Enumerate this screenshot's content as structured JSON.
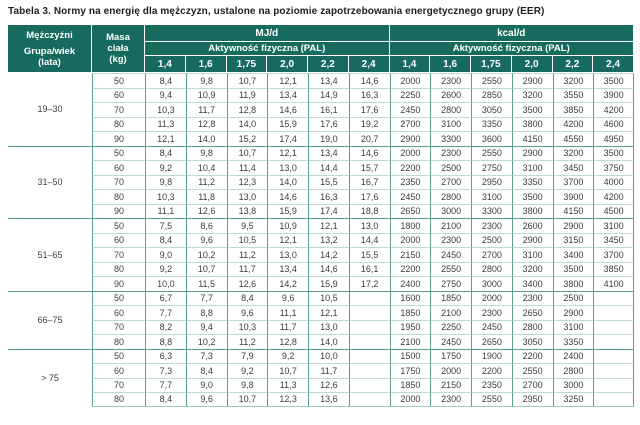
{
  "title": "Tabela 3. Normy na energię dla mężczyzn, ustalone na poziomie zapotrzebowania energetycznego grupy (EER)",
  "colors": {
    "header_teal": "#176a5e",
    "vertical_border": "#5e9e93",
    "row_line": "#bfdad4",
    "text": "#3c3c3b"
  },
  "header": {
    "group_col_line1": "Mężczyźni",
    "group_col_line2": "Grupa/wiek",
    "group_col_line3": "(lata)",
    "mass_col_line1": "Masa",
    "mass_col_line2": "ciała",
    "mass_col_line3": "(kg)",
    "mj_label": "MJ/d",
    "kcal_label": "kcal/d",
    "pal_label_mj": "Aktywność fizyczna (PAL)",
    "pal_label_kcal": "Aktywność fizyczna (PAL)",
    "pal_values": [
      "1,4",
      "1,6",
      "1,75",
      "2,0",
      "2,2",
      "2,4"
    ]
  },
  "groups": [
    {
      "age": "19–30",
      "rows": [
        {
          "mass": "50",
          "mj": [
            "8,4",
            "9,8",
            "10,7",
            "12,1",
            "13,4",
            "14,6"
          ],
          "kcal": [
            "2000",
            "2300",
            "2550",
            "2900",
            "3200",
            "3500"
          ]
        },
        {
          "mass": "60",
          "mj": [
            "9,4",
            "10,9",
            "11,9",
            "13,4",
            "14,9",
            "16,3"
          ],
          "kcal": [
            "2250",
            "2600",
            "2850",
            "3200",
            "3550",
            "3900"
          ]
        },
        {
          "mass": "70",
          "mj": [
            "10,3",
            "11,7",
            "12,8",
            "14,6",
            "16,1",
            "17,6"
          ],
          "kcal": [
            "2450",
            "2800",
            "3050",
            "3500",
            "3850",
            "4200"
          ]
        },
        {
          "mass": "80",
          "mj": [
            "11,3",
            "12,8",
            "14,0",
            "15,9",
            "17,6",
            "19,2"
          ],
          "kcal": [
            "2700",
            "3100",
            "3350",
            "3800",
            "4200",
            "4600"
          ]
        },
        {
          "mass": "90",
          "mj": [
            "12,1",
            "14,0",
            "15,2",
            "17,4",
            "19,0",
            "20,7"
          ],
          "kcal": [
            "2900",
            "3300",
            "3600",
            "4150",
            "4550",
            "4950"
          ]
        }
      ]
    },
    {
      "age": "31–50",
      "rows": [
        {
          "mass": "50",
          "mj": [
            "8,4",
            "9,8",
            "10,7",
            "12,1",
            "13,4",
            "14,6"
          ],
          "kcal": [
            "2000",
            "2300",
            "2550",
            "2900",
            "3200",
            "3500"
          ]
        },
        {
          "mass": "60",
          "mj": [
            "9,2",
            "10,4",
            "11,4",
            "13,0",
            "14,4",
            "15,7"
          ],
          "kcal": [
            "2200",
            "2500",
            "2750",
            "3100",
            "3450",
            "3750"
          ]
        },
        {
          "mass": "70",
          "mj": [
            "9,8",
            "11,2",
            "12,3",
            "14,0",
            "15,5",
            "16,7"
          ],
          "kcal": [
            "2350",
            "2700",
            "2950",
            "3350",
            "3700",
            "4000"
          ]
        },
        {
          "mass": "80",
          "mj": [
            "10,3",
            "11,8",
            "13,0",
            "14,6",
            "16,3",
            "17,6"
          ],
          "kcal": [
            "2450",
            "2800",
            "3100",
            "3500",
            "3900",
            "4200"
          ]
        },
        {
          "mass": "90",
          "mj": [
            "11,1",
            "12,6",
            "13,8",
            "15,9",
            "17,4",
            "18,8"
          ],
          "kcal": [
            "2650",
            "3000",
            "3300",
            "3800",
            "4150",
            "4500"
          ]
        }
      ]
    },
    {
      "age": "51–65",
      "rows": [
        {
          "mass": "50",
          "mj": [
            "7,5",
            "8,6",
            "9,5",
            "10,9",
            "12,1",
            "13,0"
          ],
          "kcal": [
            "1800",
            "2100",
            "2300",
            "2600",
            "2900",
            "3100"
          ]
        },
        {
          "mass": "60",
          "mj": [
            "8,4",
            "9,6",
            "10,5",
            "12,1",
            "13,2",
            "14,4"
          ],
          "kcal": [
            "2000",
            "2300",
            "2500",
            "2900",
            "3150",
            "3450"
          ]
        },
        {
          "mass": "70",
          "mj": [
            "9,0",
            "10,2",
            "11,2",
            "13,0",
            "14,2",
            "15,5"
          ],
          "kcal": [
            "2150",
            "2450",
            "2700",
            "3100",
            "3400",
            "3700"
          ]
        },
        {
          "mass": "80",
          "mj": [
            "9,2",
            "10,7",
            "11,7",
            "13,4",
            "14,6",
            "16,1"
          ],
          "kcal": [
            "2200",
            "2550",
            "2800",
            "3200",
            "3500",
            "3850"
          ]
        },
        {
          "mass": "90",
          "mj": [
            "10,0",
            "11,5",
            "12,6",
            "14,2",
            "15,9",
            "17,2"
          ],
          "kcal": [
            "2400",
            "2750",
            "3000",
            "3400",
            "3800",
            "4100"
          ]
        }
      ]
    },
    {
      "age": "66–75",
      "rows": [
        {
          "mass": "50",
          "mj": [
            "6,7",
            "7,7",
            "8,4",
            "9,6",
            "10,5",
            ""
          ],
          "kcal": [
            "1600",
            "1850",
            "2000",
            "2300",
            "2500",
            ""
          ]
        },
        {
          "mass": "60",
          "mj": [
            "7,7",
            "8,8",
            "9,6",
            "11,1",
            "12,1",
            ""
          ],
          "kcal": [
            "1850",
            "2100",
            "2300",
            "2650",
            "2900",
            ""
          ]
        },
        {
          "mass": "70",
          "mj": [
            "8,2",
            "9,4",
            "10,3",
            "11,7",
            "13,0",
            ""
          ],
          "kcal": [
            "1950",
            "2250",
            "2450",
            "2800",
            "3100",
            ""
          ]
        },
        {
          "mass": "80",
          "mj": [
            "8,8",
            "10,2",
            "11,2",
            "12,8",
            "14,0",
            ""
          ],
          "kcal": [
            "2100",
            "2450",
            "2650",
            "3050",
            "3350",
            ""
          ]
        }
      ]
    },
    {
      "age": "> 75",
      "rows": [
        {
          "mass": "50",
          "mj": [
            "6,3",
            "7,3",
            "7,9",
            "9,2",
            "10,0",
            ""
          ],
          "kcal": [
            "1500",
            "1750",
            "1900",
            "2200",
            "2400",
            ""
          ]
        },
        {
          "mass": "60",
          "mj": [
            "7,3",
            "8,4",
            "9,2",
            "10,7",
            "11,7",
            ""
          ],
          "kcal": [
            "1750",
            "2000",
            "2200",
            "2550",
            "2800",
            ""
          ]
        },
        {
          "mass": "70",
          "mj": [
            "7,7",
            "9,0",
            "9,8",
            "11,3",
            "12,6",
            ""
          ],
          "kcal": [
            "1850",
            "2150",
            "2350",
            "2700",
            "3000",
            ""
          ]
        },
        {
          "mass": "80",
          "mj": [
            "8,4",
            "9,6",
            "10,7",
            "12,3",
            "13,6",
            ""
          ],
          "kcal": [
            "2000",
            "2300",
            "2550",
            "2950",
            "3250",
            ""
          ]
        }
      ]
    }
  ]
}
